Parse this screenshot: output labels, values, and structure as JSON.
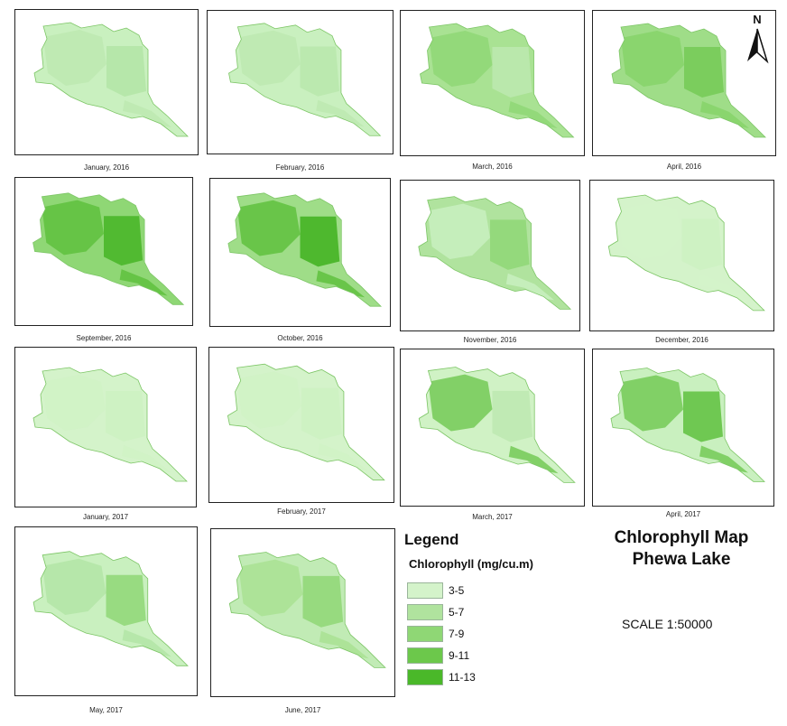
{
  "panels": [
    {
      "caption": "January, 2016",
      "fill": "#c9f0bf",
      "patches": [
        "#bde9b0",
        "#b3e5a6"
      ]
    },
    {
      "caption": "February, 2016",
      "fill": "#c9f0bf",
      "patches": [
        "#bde9b0",
        "#b9e8ac"
      ]
    },
    {
      "caption": "March, 2016",
      "fill": "#a9e293",
      "patches": [
        "#8fd775",
        "#bde9b0"
      ]
    },
    {
      "caption": "April, 2016",
      "fill": "#9fdd88",
      "patches": [
        "#86d36a",
        "#74ca56"
      ]
    },
    {
      "caption": "September, 2016",
      "fill": "#8fd775",
      "patches": [
        "#5fc13e",
        "#46b526"
      ]
    },
    {
      "caption": "October, 2016",
      "fill": "#9fdd88",
      "patches": [
        "#5fc13e",
        "#3fb11f"
      ]
    },
    {
      "caption": "November, 2016",
      "fill": "#b0e39e",
      "patches": [
        "#c9f0bf",
        "#8fd775"
      ]
    },
    {
      "caption": "December, 2016",
      "fill": "#d4f3ca",
      "patches": [
        "#d4f3ca",
        "#cdf1c2"
      ]
    },
    {
      "caption": "January, 2017",
      "fill": "#d4f3ca",
      "patches": [
        "#d0f2c5",
        "#cdf1c2"
      ]
    },
    {
      "caption": "February, 2017",
      "fill": "#d4f3ca",
      "patches": [
        "#d0f2c5",
        "#cdf1c2"
      ]
    },
    {
      "caption": "March, 2017",
      "fill": "#d0f2c5",
      "patches": [
        "#74ca56",
        "#bde9b0"
      ]
    },
    {
      "caption": "April, 2017",
      "fill": "#c9f0bf",
      "patches": [
        "#74ca56",
        "#5fc13e"
      ]
    },
    {
      "caption": "May, 2017",
      "fill": "#c9f0bf",
      "patches": [
        "#b3e5a6",
        "#8fd775"
      ]
    },
    {
      "caption": "June, 2017",
      "fill": "#c1ebb5",
      "patches": [
        "#a9e293",
        "#8fd775"
      ]
    }
  ],
  "north_arrow": {
    "label": "N"
  },
  "legend": {
    "title": "Legend",
    "subtitle": "Chlorophyll (mg/cu.m)",
    "items": [
      {
        "label": "3-5",
        "color": "#d4f3ca"
      },
      {
        "label": "5-7",
        "color": "#b0e39e"
      },
      {
        "label": "7-9",
        "color": "#8fd775"
      },
      {
        "label": "9-11",
        "color": "#6cc84b"
      },
      {
        "label": "11-13",
        "color": "#4ab829"
      }
    ]
  },
  "map_title": {
    "line1": "Chlorophyll Map",
    "line2": "Phewa Lake"
  },
  "scale": "SCALE 1:50000"
}
